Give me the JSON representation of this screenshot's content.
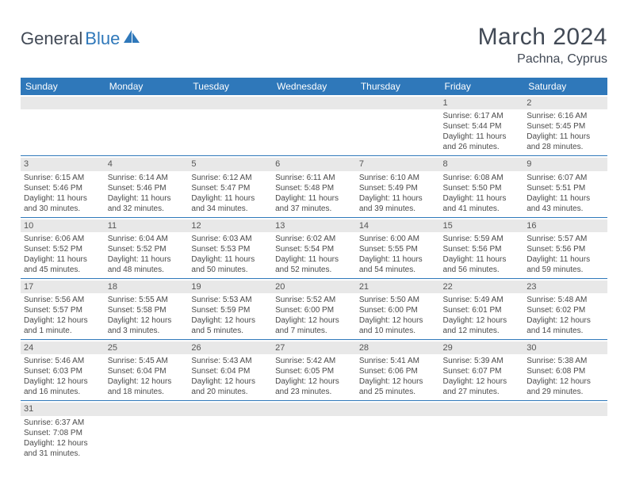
{
  "logo": {
    "text1": "General",
    "text2": "Blue"
  },
  "title": "March 2024",
  "location": "Pachna, Cyprus",
  "colors": {
    "header_bg": "#2f78ba",
    "header_text": "#ffffff",
    "daynum_bg": "#e8e8e8",
    "row_border": "#2f78ba",
    "text": "#4a4a4a",
    "title_color": "#424a56"
  },
  "weekdays": [
    "Sunday",
    "Monday",
    "Tuesday",
    "Wednesday",
    "Thursday",
    "Friday",
    "Saturday"
  ],
  "weeks": [
    [
      null,
      null,
      null,
      null,
      null,
      {
        "d": "1",
        "sr": "Sunrise: 6:17 AM",
        "ss": "Sunset: 5:44 PM",
        "dl1": "Daylight: 11 hours",
        "dl2": "and 26 minutes."
      },
      {
        "d": "2",
        "sr": "Sunrise: 6:16 AM",
        "ss": "Sunset: 5:45 PM",
        "dl1": "Daylight: 11 hours",
        "dl2": "and 28 minutes."
      }
    ],
    [
      {
        "d": "3",
        "sr": "Sunrise: 6:15 AM",
        "ss": "Sunset: 5:46 PM",
        "dl1": "Daylight: 11 hours",
        "dl2": "and 30 minutes."
      },
      {
        "d": "4",
        "sr": "Sunrise: 6:14 AM",
        "ss": "Sunset: 5:46 PM",
        "dl1": "Daylight: 11 hours",
        "dl2": "and 32 minutes."
      },
      {
        "d": "5",
        "sr": "Sunrise: 6:12 AM",
        "ss": "Sunset: 5:47 PM",
        "dl1": "Daylight: 11 hours",
        "dl2": "and 34 minutes."
      },
      {
        "d": "6",
        "sr": "Sunrise: 6:11 AM",
        "ss": "Sunset: 5:48 PM",
        "dl1": "Daylight: 11 hours",
        "dl2": "and 37 minutes."
      },
      {
        "d": "7",
        "sr": "Sunrise: 6:10 AM",
        "ss": "Sunset: 5:49 PM",
        "dl1": "Daylight: 11 hours",
        "dl2": "and 39 minutes."
      },
      {
        "d": "8",
        "sr": "Sunrise: 6:08 AM",
        "ss": "Sunset: 5:50 PM",
        "dl1": "Daylight: 11 hours",
        "dl2": "and 41 minutes."
      },
      {
        "d": "9",
        "sr": "Sunrise: 6:07 AM",
        "ss": "Sunset: 5:51 PM",
        "dl1": "Daylight: 11 hours",
        "dl2": "and 43 minutes."
      }
    ],
    [
      {
        "d": "10",
        "sr": "Sunrise: 6:06 AM",
        "ss": "Sunset: 5:52 PM",
        "dl1": "Daylight: 11 hours",
        "dl2": "and 45 minutes."
      },
      {
        "d": "11",
        "sr": "Sunrise: 6:04 AM",
        "ss": "Sunset: 5:52 PM",
        "dl1": "Daylight: 11 hours",
        "dl2": "and 48 minutes."
      },
      {
        "d": "12",
        "sr": "Sunrise: 6:03 AM",
        "ss": "Sunset: 5:53 PM",
        "dl1": "Daylight: 11 hours",
        "dl2": "and 50 minutes."
      },
      {
        "d": "13",
        "sr": "Sunrise: 6:02 AM",
        "ss": "Sunset: 5:54 PM",
        "dl1": "Daylight: 11 hours",
        "dl2": "and 52 minutes."
      },
      {
        "d": "14",
        "sr": "Sunrise: 6:00 AM",
        "ss": "Sunset: 5:55 PM",
        "dl1": "Daylight: 11 hours",
        "dl2": "and 54 minutes."
      },
      {
        "d": "15",
        "sr": "Sunrise: 5:59 AM",
        "ss": "Sunset: 5:56 PM",
        "dl1": "Daylight: 11 hours",
        "dl2": "and 56 minutes."
      },
      {
        "d": "16",
        "sr": "Sunrise: 5:57 AM",
        "ss": "Sunset: 5:56 PM",
        "dl1": "Daylight: 11 hours",
        "dl2": "and 59 minutes."
      }
    ],
    [
      {
        "d": "17",
        "sr": "Sunrise: 5:56 AM",
        "ss": "Sunset: 5:57 PM",
        "dl1": "Daylight: 12 hours",
        "dl2": "and 1 minute."
      },
      {
        "d": "18",
        "sr": "Sunrise: 5:55 AM",
        "ss": "Sunset: 5:58 PM",
        "dl1": "Daylight: 12 hours",
        "dl2": "and 3 minutes."
      },
      {
        "d": "19",
        "sr": "Sunrise: 5:53 AM",
        "ss": "Sunset: 5:59 PM",
        "dl1": "Daylight: 12 hours",
        "dl2": "and 5 minutes."
      },
      {
        "d": "20",
        "sr": "Sunrise: 5:52 AM",
        "ss": "Sunset: 6:00 PM",
        "dl1": "Daylight: 12 hours",
        "dl2": "and 7 minutes."
      },
      {
        "d": "21",
        "sr": "Sunrise: 5:50 AM",
        "ss": "Sunset: 6:00 PM",
        "dl1": "Daylight: 12 hours",
        "dl2": "and 10 minutes."
      },
      {
        "d": "22",
        "sr": "Sunrise: 5:49 AM",
        "ss": "Sunset: 6:01 PM",
        "dl1": "Daylight: 12 hours",
        "dl2": "and 12 minutes."
      },
      {
        "d": "23",
        "sr": "Sunrise: 5:48 AM",
        "ss": "Sunset: 6:02 PM",
        "dl1": "Daylight: 12 hours",
        "dl2": "and 14 minutes."
      }
    ],
    [
      {
        "d": "24",
        "sr": "Sunrise: 5:46 AM",
        "ss": "Sunset: 6:03 PM",
        "dl1": "Daylight: 12 hours",
        "dl2": "and 16 minutes."
      },
      {
        "d": "25",
        "sr": "Sunrise: 5:45 AM",
        "ss": "Sunset: 6:04 PM",
        "dl1": "Daylight: 12 hours",
        "dl2": "and 18 minutes."
      },
      {
        "d": "26",
        "sr": "Sunrise: 5:43 AM",
        "ss": "Sunset: 6:04 PM",
        "dl1": "Daylight: 12 hours",
        "dl2": "and 20 minutes."
      },
      {
        "d": "27",
        "sr": "Sunrise: 5:42 AM",
        "ss": "Sunset: 6:05 PM",
        "dl1": "Daylight: 12 hours",
        "dl2": "and 23 minutes."
      },
      {
        "d": "28",
        "sr": "Sunrise: 5:41 AM",
        "ss": "Sunset: 6:06 PM",
        "dl1": "Daylight: 12 hours",
        "dl2": "and 25 minutes."
      },
      {
        "d": "29",
        "sr": "Sunrise: 5:39 AM",
        "ss": "Sunset: 6:07 PM",
        "dl1": "Daylight: 12 hours",
        "dl2": "and 27 minutes."
      },
      {
        "d": "30",
        "sr": "Sunrise: 5:38 AM",
        "ss": "Sunset: 6:08 PM",
        "dl1": "Daylight: 12 hours",
        "dl2": "and 29 minutes."
      }
    ],
    [
      {
        "d": "31",
        "sr": "Sunrise: 6:37 AM",
        "ss": "Sunset: 7:08 PM",
        "dl1": "Daylight: 12 hours",
        "dl2": "and 31 minutes."
      },
      null,
      null,
      null,
      null,
      null,
      null
    ]
  ]
}
